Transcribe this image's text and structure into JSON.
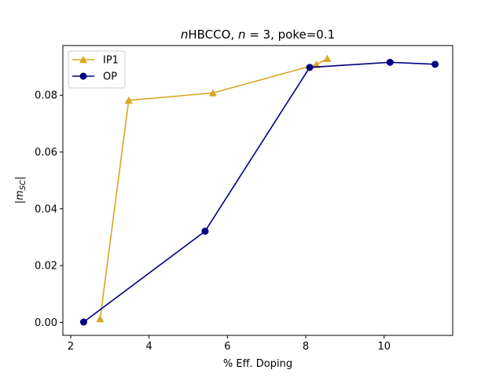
{
  "chart_data": {
    "type": "line",
    "title": {
      "italic_prefix": "n",
      "rest": "HBCCO, ",
      "italic_n": "n",
      "after_n": " = 3, poke=0.1"
    },
    "xlabel": "% Eff. Doping",
    "ylabel": {
      "prefix": "|",
      "main": "m",
      "sub": "SC",
      "suffix": "|"
    },
    "xlim": [
      1.8,
      11.75
    ],
    "ylim": [
      -0.0046,
      0.0975
    ],
    "xticks": [
      2,
      4,
      6,
      8,
      10
    ],
    "xtick_labels": [
      "2",
      "4",
      "6",
      "8",
      "10"
    ],
    "yticks": [
      0.0,
      0.02,
      0.04,
      0.06,
      0.08
    ],
    "ytick_labels": [
      "0.00",
      "0.02",
      "0.04",
      "0.06",
      "0.08"
    ],
    "grid": false,
    "legend_position": "top-left",
    "series": [
      {
        "name": "IP1",
        "color": "#DAA520",
        "marker": "triangle",
        "x": [
          2.75,
          3.48,
          5.63,
          8.27,
          8.55
        ],
        "y": [
          0.0012,
          0.0782,
          0.0808,
          0.0908,
          0.0929
        ]
      },
      {
        "name": "OP",
        "color": "#000080",
        "marker": "circle",
        "x": [
          2.33,
          5.43,
          8.1,
          10.15,
          11.3
        ],
        "y": [
          0.0001,
          0.0321,
          0.0898,
          0.0916,
          0.0909
        ]
      }
    ]
  }
}
